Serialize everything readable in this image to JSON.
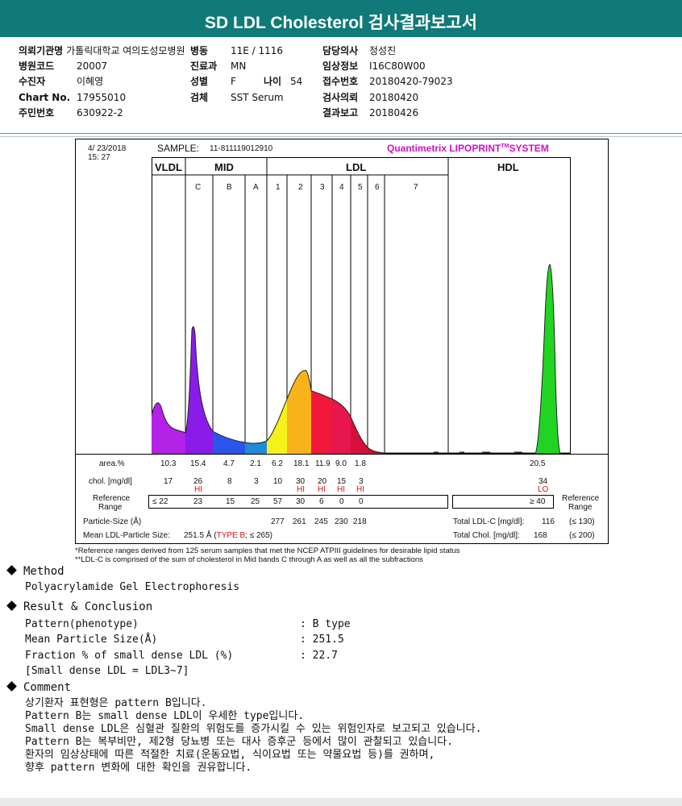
{
  "title": "SD LDL Cholesterol 검사결과보고서",
  "patient": {
    "col1": [
      {
        "label": "의뢰기관명",
        "value": "가톨릭대학교 여의도성모병원"
      },
      {
        "label": "병원코드",
        "value": "20007"
      },
      {
        "label": "수진자",
        "value": "이혜영"
      },
      {
        "label": "Chart No.",
        "value": "17955010"
      },
      {
        "label": "주민번호",
        "value": "630922-2"
      }
    ],
    "col2": [
      {
        "label": "병동",
        "value": "11E / 1116"
      },
      {
        "label": "진료과",
        "value": "MN"
      },
      {
        "label": "성별",
        "value": "F"
      },
      {
        "label": "검체",
        "value": "SST Serum"
      }
    ],
    "age": {
      "label": "나이",
      "value": "54"
    },
    "col3": [
      {
        "label": "담당의사",
        "value": "정성진"
      },
      {
        "label": "임상정보",
        "value": "I16C80W00"
      },
      {
        "label": "접수번호",
        "value": "20180420-79023"
      },
      {
        "label": "검사의뢰",
        "value": "20180420"
      },
      {
        "label": "결과보고",
        "value": "20180426"
      }
    ]
  },
  "report": {
    "date": "4/ 23/2018",
    "time": "15: 27",
    "sample_label": "SAMPLE:",
    "sample_id": "11-811119012910",
    "system": "Quantimetrix LIPOPRINT",
    "system_tm": "TM",
    "system_suffix": "SYSTEM",
    "zones": {
      "vldl": "VLDL",
      "mid": "MID",
      "ldl": "LDL",
      "hdl": "HDL"
    },
    "bands": [
      "C",
      "B",
      "A",
      "1",
      "2",
      "3",
      "4",
      "5",
      "6",
      "7"
    ],
    "rows": {
      "area_label": "area.%",
      "area": [
        "10.3",
        "15.4",
        "4.7",
        "2.1",
        "6.2",
        "18.1",
        "11.9",
        "9.0",
        "1.8",
        "20.5"
      ],
      "chol_label": "chol. [mg/dl]",
      "chol": [
        "17",
        "26",
        "8",
        "3",
        "10",
        "30",
        "20",
        "15",
        "3",
        "34"
      ],
      "flags": [
        "",
        "HI",
        "",
        "",
        "",
        "HI",
        "HI",
        "HI",
        "HI",
        "LO"
      ],
      "ref_label_1": "Reference",
      "ref_label_2": "Range",
      "ref_left": [
        "≤ 22",
        "23",
        "15",
        "25",
        "57",
        "30",
        "6",
        "0",
        "0"
      ],
      "ref_hdl": "≥ 40",
      "ref_right_1": "Reference",
      "ref_right_2": "Range",
      "particle_label": "Particle-Size (Å)",
      "particle": [
        "277",
        "261",
        "245",
        "230",
        "218"
      ],
      "total_ldl_label": "Total LDL-C [mg/dl]:",
      "total_ldl": "116",
      "total_ldl_ref": "(≤ 130)",
      "mean_label": "Mean LDL-Particle Size:",
      "mean_value": "251.5 Å",
      "mean_type": "TYPE B",
      "mean_ref": "; ≤ 265)",
      "total_chol_label": "Total Chol. [mg/dl]:",
      "total_chol": "168",
      "total_chol_ref": "(≤ 200)"
    },
    "footnote1": "*Reference ranges derived from 125 serum samples that met the NCEP ATPIII guidelines for desirable lipid status",
    "footnote2": "**LDL-C is comprised of the sum of cholesterol in Mid bands C through A as well as all the subfractions"
  },
  "method": {
    "heading": "Method",
    "text": "Polyacrylamide Gel Electrophoresis"
  },
  "result": {
    "heading": "Result & Conclusion",
    "rows": [
      {
        "label": "Pattern(phenotype)",
        "value": "B type"
      },
      {
        "label": "Mean Particle Size(Å)",
        "value": "251.5"
      },
      {
        "label": "Fraction % of small dense LDL (%)",
        "value": "22.7"
      }
    ],
    "note": "[Small dense LDL = LDL3~7]"
  },
  "comment": {
    "heading": "Comment",
    "lines": [
      "상기환자 표현형은 pattern B입니다.",
      "Pattern B는 small dense LDL이 우세한 type입니다.",
      "Small dense LDL은 심혈관 질환의 위험도를 증가시킬 수 있는 위험인자로 보고되고 있습니다.",
      "Pattern B는 복부비만, 제2형 당뇨병 또는 대사 증후군 등에서 많이 관찰되고 있습니다.",
      "환자의 임상상태에 따른 적절한 치료(운동요법, 식이요법 또는 약물요법 등)를 권하며,",
      "향후 pattern 변화에 대한 확인을 권유합니다."
    ]
  },
  "colors": {
    "header": "#0f7a77",
    "flag": "#d71010",
    "brand": "#d010c8",
    "hdl_peak": "#22d422"
  }
}
